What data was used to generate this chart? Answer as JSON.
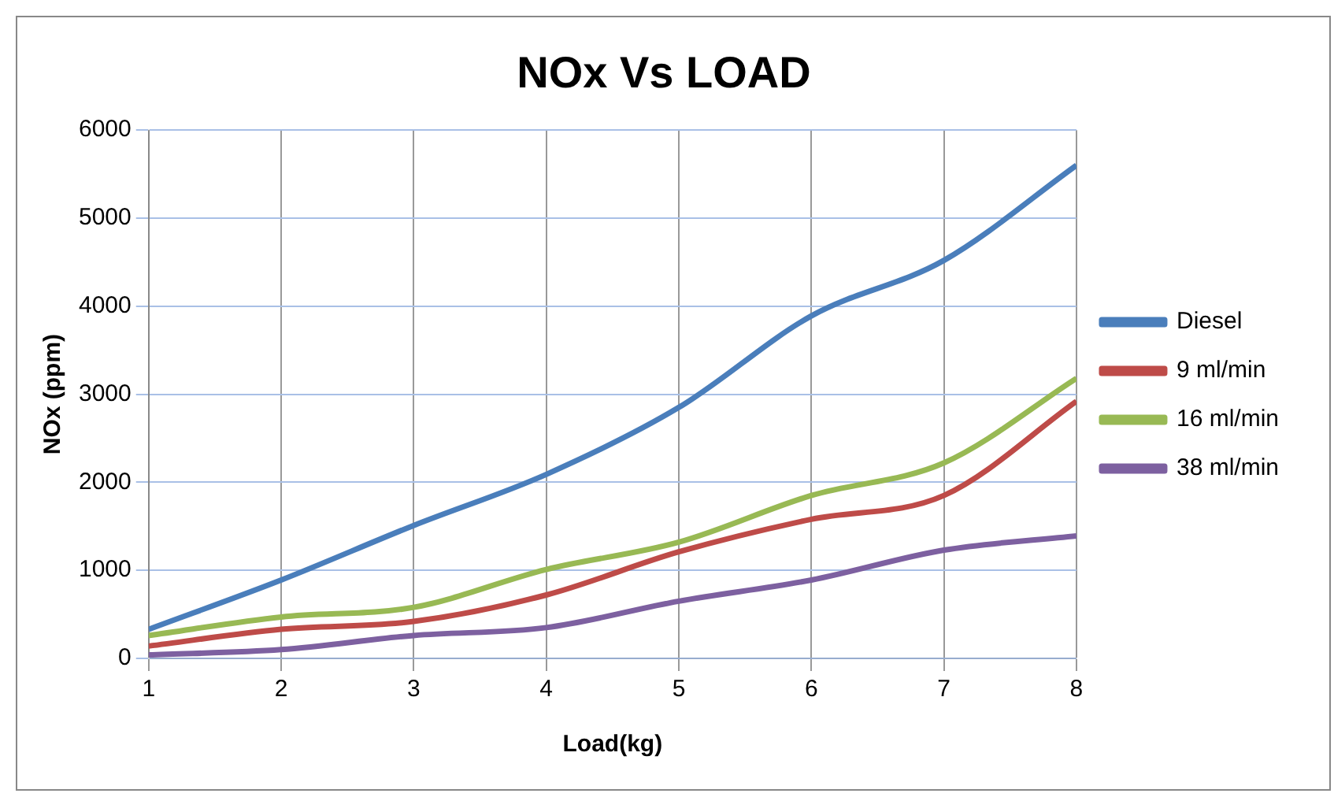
{
  "chart_data": {
    "type": "line",
    "title": "NOx Vs LOAD",
    "xlabel": "Load(kg)",
    "ylabel": "NOx (ppm)",
    "x": [
      1,
      2,
      3,
      4,
      5,
      6,
      7,
      8
    ],
    "xlim": [
      1,
      8
    ],
    "xticks": [
      1,
      2,
      3,
      4,
      5,
      6,
      7,
      8
    ],
    "ylim": [
      0,
      6000
    ],
    "yticks": [
      0,
      1000,
      2000,
      3000,
      4000,
      5000,
      6000
    ],
    "grid": true,
    "legend": "right",
    "marker": "none",
    "line_style": "solid",
    "series": [
      {
        "name": "Diesel",
        "color": "#4a7ebb",
        "values": [
          330,
          890,
          1510,
          2090,
          2850,
          3890,
          4520,
          5600
        ]
      },
      {
        "name": "9 ml/min",
        "color": "#be4b48",
        "values": [
          140,
          330,
          420,
          720,
          1210,
          1580,
          1850,
          2920
        ]
      },
      {
        "name": "16 ml/min",
        "color": "#98b954",
        "values": [
          260,
          470,
          580,
          1010,
          1320,
          1850,
          2220,
          3180
        ]
      },
      {
        "name": "38 ml/min",
        "color": "#7d60a0",
        "values": [
          40,
          100,
          260,
          350,
          650,
          890,
          1230,
          1390
        ]
      }
    ]
  }
}
